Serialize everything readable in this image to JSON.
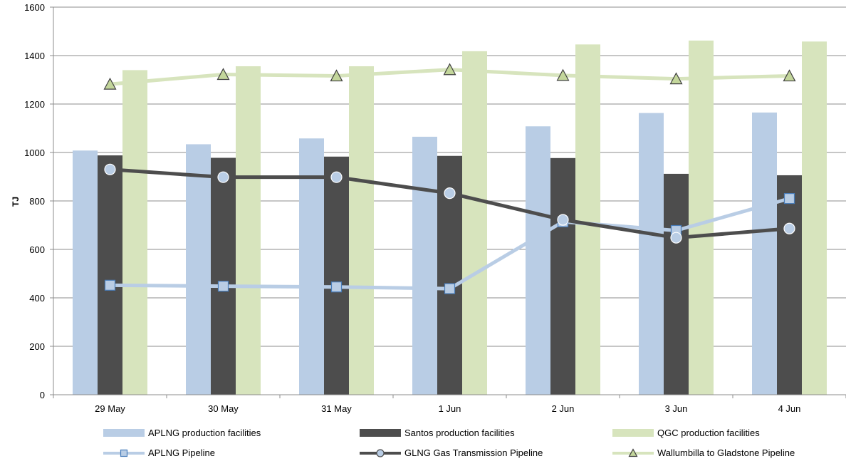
{
  "chart_data": {
    "type": "bar",
    "title": "",
    "xlabel": "",
    "ylabel": "TJ",
    "ylim": [
      0,
      1600
    ],
    "yticks": [
      0,
      200,
      400,
      600,
      800,
      1000,
      1200,
      1400,
      1600
    ],
    "grid": true,
    "legend_position": "bottom",
    "categories": [
      "29 May",
      "30 May",
      "31 May",
      "1 Jun",
      "2 Jun",
      "3 Jun",
      "4 Jun"
    ],
    "bar_series": [
      {
        "name": "APLNG production facilities",
        "color": "#b9cde5",
        "values": [
          1008,
          1034,
          1058,
          1065,
          1108,
          1163,
          1165
        ]
      },
      {
        "name": "Santos production facilities",
        "color": "#4d4d4d",
        "values": [
          988,
          978,
          983,
          986,
          977,
          912,
          906
        ]
      },
      {
        "name": "QGC production facilities",
        "color": "#d7e4bd",
        "values": [
          1340,
          1356,
          1356,
          1418,
          1446,
          1462,
          1458
        ]
      }
    ],
    "line_series": [
      {
        "name": "APLNG Pipeline",
        "color": "#b9cde5",
        "marker": "square",
        "values": [
          452,
          448,
          445,
          438,
          714,
          678,
          810
        ]
      },
      {
        "name": "GLNG Gas Transmission Pipeline",
        "color": "#4d4d4d",
        "marker": "circle",
        "values": [
          930,
          898,
          898,
          832,
          722,
          648,
          686
        ]
      },
      {
        "name": "Wallumbilla to Gladstone Pipeline",
        "color": "#d7e4bd",
        "marker": "triangle",
        "values": [
          1282,
          1322,
          1316,
          1342,
          1318,
          1304,
          1316
        ]
      }
    ]
  }
}
